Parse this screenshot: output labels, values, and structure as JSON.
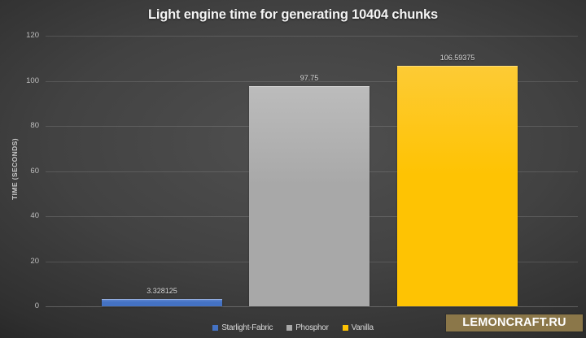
{
  "title": "Light engine time for generating 10404 chunks",
  "chart_data": {
    "type": "bar",
    "title": "Light engine time for generating 10404 chunks",
    "categories": [
      "Starlight-Fabric",
      "Phosphor",
      "Vanilla"
    ],
    "values": [
      3.328125,
      97.75,
      106.59375
    ],
    "value_labels": [
      "3.328125",
      "97.75",
      "106.59375"
    ],
    "colors": [
      "#4472c4",
      "#a8a8a8",
      "#fec303"
    ],
    "colors_light": [
      "#6189d2",
      "#bcbcbc",
      "#fdcb35"
    ],
    "xlabel": "",
    "ylabel": "TIME (SECONDS)",
    "ylim": [
      0,
      120
    ],
    "yticks": [
      0,
      20,
      40,
      60,
      80,
      100,
      120
    ],
    "grid": true,
    "legend_position": "bottom",
    "background": "dark-gray-radial-gradient"
  },
  "watermark": {
    "text": "LEMONCRAFT.RU",
    "bg_color": "#8b7749",
    "text_color": "#ffffff"
  }
}
